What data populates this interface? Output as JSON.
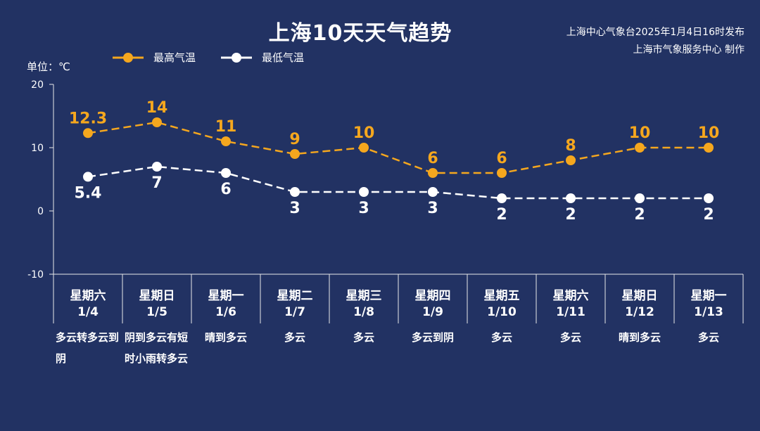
{
  "title": "上海10天天气趋势",
  "source": {
    "line1": "上海中心气象台2025年1月4日16时发布",
    "line2": "上海市气象服务中心 制作"
  },
  "unit_label": "单位：℃",
  "colors": {
    "background": "#223263",
    "high": "#f5a71e",
    "low": "#ffffff"
  },
  "chart_data": {
    "type": "line",
    "ylim": [
      -10,
      20
    ],
    "yticks": [
      "20",
      "10",
      "0",
      "-10"
    ],
    "categories": [
      "1/4",
      "1/5",
      "1/6",
      "1/7",
      "1/8",
      "1/9",
      "1/10",
      "1/11",
      "1/12",
      "1/13"
    ],
    "weekdays": [
      "星期六",
      "星期日",
      "星期一",
      "星期二",
      "星期三",
      "星期四",
      "星期五",
      "星期六",
      "星期日",
      "星期一"
    ],
    "weather": [
      "多云转多云到阴",
      "阴到多云有短时小雨转多云",
      "晴到多云",
      "多云",
      "多云",
      "多云到阴",
      "多云",
      "多云",
      "晴到多云",
      "多云"
    ],
    "series": [
      {
        "name": "最高气温",
        "values": [
          12.3,
          14,
          11,
          9,
          10,
          6,
          6,
          8,
          10,
          10
        ],
        "labels": [
          "12.3",
          "14",
          "11",
          "9",
          "10",
          "6",
          "6",
          "8",
          "10",
          "10"
        ]
      },
      {
        "name": "最低气温",
        "values": [
          5.4,
          7,
          6,
          3,
          3,
          3,
          2,
          2,
          2,
          2
        ],
        "labels": [
          "5.4",
          "7",
          "6",
          "3",
          "3",
          "3",
          "2",
          "2",
          "2",
          "2"
        ]
      }
    ]
  }
}
